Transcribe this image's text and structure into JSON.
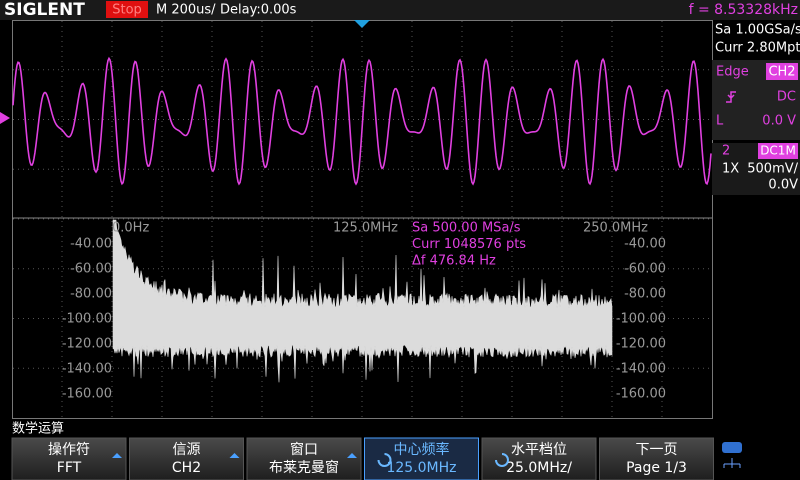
{
  "header": {
    "brand": "SIGLENT",
    "status": "Stop",
    "timebase": "M 200us/",
    "delay": "Delay:0.00s",
    "frequency": "f = 8.53328kHz"
  },
  "acquisition": {
    "sample_rate": "Sa 1.00GSa/s",
    "memory": "Curr 2.80Mpts"
  },
  "trigger": {
    "type": "Edge",
    "source": "CH2",
    "coupling": "DC",
    "level_label": "L",
    "level": "0.0 V"
  },
  "channel": {
    "number": "2",
    "coupling": "DC1M",
    "probe": "1X",
    "scale": "500mV/",
    "offset": "0.0V"
  },
  "fft": {
    "x_labels": [
      "0.0Hz",
      "125.0MHz",
      "250.0MHz"
    ],
    "info": [
      "Sa 500.00 MSa/s",
      "Curr 1048576 pts",
      "Δf 476.84 Hz"
    ],
    "y_labels": [
      "-40.00",
      "-60.00",
      "-80.00",
      "-100.00",
      "-120.00",
      "-140.00",
      "-160.00"
    ]
  },
  "menu": {
    "title": "数学运算",
    "buttons": [
      {
        "label": "操作符",
        "value": "FFT"
      },
      {
        "label": "信源",
        "value": "CH2"
      },
      {
        "label": "窗口",
        "value": "布莱克曼窗"
      },
      {
        "label": "中心频率",
        "value": "125.0MHz"
      },
      {
        "label": "水平档位",
        "value": "25.0MHz/"
      },
      {
        "label": "下一页",
        "value": "Page 1/3"
      }
    ]
  }
}
